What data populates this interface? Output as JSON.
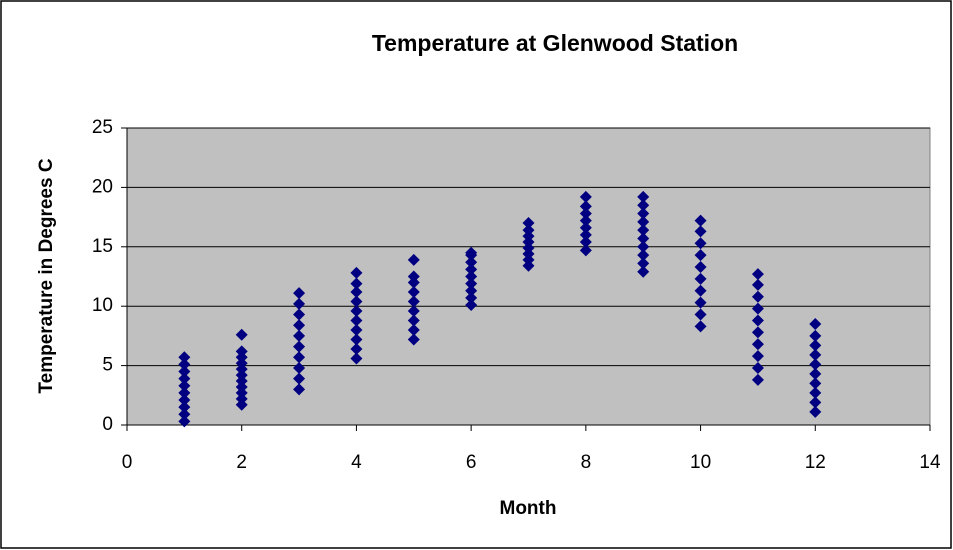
{
  "chart_data": {
    "type": "scatter",
    "title": "Temperature at Glenwood Station",
    "xlabel": "Month",
    "ylabel": "Temperature in Degrees C",
    "x": [
      1,
      1,
      1,
      1,
      1,
      1,
      1,
      1,
      1,
      1,
      2,
      2,
      2,
      2,
      2,
      2,
      2,
      2,
      2,
      2,
      2,
      3,
      3,
      3,
      3,
      3,
      3,
      3,
      3,
      3,
      3,
      4,
      4,
      4,
      4,
      4,
      4,
      4,
      4,
      4,
      4,
      5,
      5,
      5,
      5,
      5,
      5,
      5,
      5,
      5,
      6,
      6,
      6,
      6,
      6,
      6,
      6,
      6,
      6,
      7,
      7,
      7,
      7,
      7,
      7,
      7,
      7,
      8,
      8,
      8,
      8,
      8,
      8,
      8,
      8,
      9,
      9,
      9,
      9,
      9,
      9,
      9,
      9,
      9,
      9,
      10,
      10,
      10,
      10,
      10,
      10,
      10,
      10,
      10,
      10,
      11,
      11,
      11,
      11,
      11,
      11,
      11,
      11,
      11,
      11,
      12,
      12,
      12,
      12,
      12,
      12,
      12,
      12,
      12,
      12
    ],
    "values": [
      0.3,
      0.9,
      1.5,
      2.1,
      2.7,
      3.3,
      3.9,
      4.5,
      5.1,
      5.7,
      1.7,
      2.2,
      2.7,
      3.2,
      3.7,
      4.2,
      4.7,
      5.2,
      5.7,
      6.2,
      7.6,
      3.0,
      3.9,
      4.8,
      5.7,
      6.6,
      7.5,
      8.4,
      9.3,
      10.2,
      11.1,
      5.6,
      6.4,
      7.2,
      8.0,
      8.8,
      9.6,
      10.4,
      11.2,
      11.9,
      12.8,
      7.2,
      8.0,
      8.8,
      9.6,
      10.4,
      11.2,
      12.0,
      12.5,
      13.9,
      10.1,
      10.7,
      11.3,
      11.9,
      12.5,
      13.1,
      13.7,
      14.3,
      14.5,
      13.4,
      13.9,
      14.4,
      14.9,
      15.4,
      15.9,
      16.4,
      17.0,
      14.7,
      15.4,
      16.0,
      16.6,
      17.2,
      17.8,
      18.4,
      19.2,
      12.9,
      13.6,
      14.3,
      15.0,
      15.7,
      16.4,
      17.1,
      17.8,
      18.5,
      19.2,
      8.3,
      9.3,
      10.3,
      11.3,
      12.3,
      13.3,
      14.3,
      15.3,
      16.3,
      17.2,
      3.8,
      4.8,
      5.8,
      6.8,
      7.8,
      8.8,
      9.8,
      10.8,
      11.8,
      12.7,
      1.1,
      1.9,
      2.7,
      3.5,
      4.3,
      5.1,
      5.9,
      6.7,
      7.5,
      8.5
    ],
    "color": "#000080",
    "xlim": [
      0,
      14
    ],
    "xticks": [
      0,
      2,
      4,
      6,
      8,
      10,
      12,
      14
    ],
    "ylim": [
      0,
      25
    ],
    "yticks": [
      0,
      5,
      10,
      15,
      20,
      25
    ],
    "grid": true
  }
}
